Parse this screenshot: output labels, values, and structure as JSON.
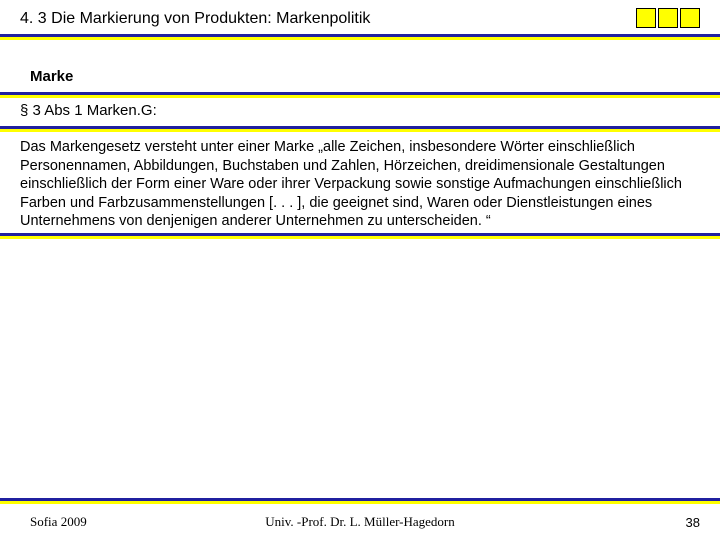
{
  "colors": {
    "divider_top": "#2020a0",
    "divider_bottom": "#ffff00",
    "corner_box_fill": "#ffff00",
    "corner_box_border": "#000000",
    "text": "#000000",
    "background": "#ffffff"
  },
  "header": {
    "title": "4. 3 Die Markierung von Produkten: Markenpolitik",
    "corner_box_count": 3
  },
  "section1": {
    "subtitle": "Marke"
  },
  "section2": {
    "law_reference": "§ 3 Abs 1 Marken.G:"
  },
  "body": {
    "text": "Das Markengesetz versteht unter einer Marke „alle Zeichen, insbesondere Wörter einschließlich Personennamen, Abbildungen, Buchstaben und Zahlen, Hörzeichen, dreidimensionale Gestaltungen einschließlich der Form einer Ware oder ihrer Verpackung sowie sonstige Aufmachungen einschließlich Farben und Farbzusammenstellungen [. . . ], die geeignet sind, Waren oder Dienstleistungen eines Unternehmens von denjenigen anderer Unternehmen zu unterscheiden. “"
  },
  "footer": {
    "left": "Sofia 2009",
    "center": "Univ. -Prof. Dr. L. Müller-Hagedorn",
    "page": "38"
  }
}
